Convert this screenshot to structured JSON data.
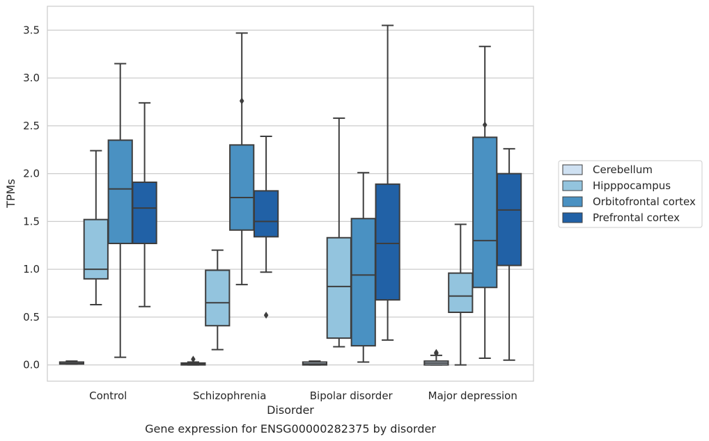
{
  "chart_data": {
    "type": "box",
    "caption": "Gene expression for ENSG00000282375 by disorder",
    "xlabel": "Disorder",
    "ylabel": "TPMs",
    "ylim": [
      -0.17,
      3.75
    ],
    "yticks": [
      0.0,
      0.5,
      1.0,
      1.5,
      2.0,
      2.5,
      3.0,
      3.5
    ],
    "ytick_labels": [
      "0.0",
      "0.5",
      "1.0",
      "1.5",
      "2.0",
      "2.5",
      "3.0",
      "3.5"
    ],
    "grid": "horizontal",
    "legend_position": "right",
    "categories": [
      "Control",
      "Schizophrenia",
      "Bipolar disorder",
      "Major depression"
    ],
    "series": [
      {
        "name": "Cerebellum",
        "color": "#cfe1f2",
        "boxes": [
          {
            "whisker_low": 0.01,
            "q1": 0.01,
            "median": 0.015,
            "q3": 0.03,
            "whisker_high": 0.04,
            "outliers": []
          },
          {
            "whisker_low": 0.0,
            "q1": 0.0,
            "median": 0.01,
            "q3": 0.02,
            "whisker_high": 0.03,
            "outliers": [
              0.06
            ]
          },
          {
            "whisker_low": 0.0,
            "q1": 0.0,
            "median": 0.01,
            "q3": 0.03,
            "whisker_high": 0.04,
            "outliers": []
          },
          {
            "whisker_low": 0.0,
            "q1": 0.0,
            "median": 0.02,
            "q3": 0.04,
            "whisker_high": 0.1,
            "outliers": [
              0.12,
              0.13
            ]
          }
        ]
      },
      {
        "name": "Hipppocampus",
        "color": "#93c4de",
        "boxes": [
          {
            "whisker_low": 0.63,
            "q1": 0.9,
            "median": 1.0,
            "q3": 1.52,
            "whisker_high": 2.24,
            "outliers": []
          },
          {
            "whisker_low": 0.16,
            "q1": 0.41,
            "median": 0.65,
            "q3": 0.99,
            "whisker_high": 1.2,
            "outliers": []
          },
          {
            "whisker_low": 0.19,
            "q1": 0.28,
            "median": 0.82,
            "q3": 1.33,
            "whisker_high": 2.58,
            "outliers": []
          },
          {
            "whisker_low": 0.0,
            "q1": 0.55,
            "median": 0.72,
            "q3": 0.96,
            "whisker_high": 1.47,
            "outliers": []
          }
        ]
      },
      {
        "name": "Orbitofrontal cortex",
        "color": "#4a91c2",
        "boxes": [
          {
            "whisker_low": 0.08,
            "q1": 1.27,
            "median": 1.84,
            "q3": 2.35,
            "whisker_high": 3.15,
            "outliers": []
          },
          {
            "whisker_low": 0.84,
            "q1": 1.41,
            "median": 1.75,
            "q3": 2.3,
            "whisker_high": 3.47,
            "outliers": [
              2.76
            ]
          },
          {
            "whisker_low": 0.03,
            "q1": 0.2,
            "median": 0.94,
            "q3": 1.53,
            "whisker_high": 2.01,
            "outliers": []
          },
          {
            "whisker_low": 0.07,
            "q1": 0.81,
            "median": 1.3,
            "q3": 2.38,
            "whisker_high": 3.33,
            "outliers": [
              2.51
            ]
          }
        ]
      },
      {
        "name": "Prefrontal cortex",
        "color": "#2161a6",
        "boxes": [
          {
            "whisker_low": 0.61,
            "q1": 1.27,
            "median": 1.64,
            "q3": 1.91,
            "whisker_high": 2.74,
            "outliers": []
          },
          {
            "whisker_low": 0.97,
            "q1": 1.34,
            "median": 1.5,
            "q3": 1.82,
            "whisker_high": 2.39,
            "outliers": [
              0.52
            ]
          },
          {
            "whisker_low": 0.26,
            "q1": 0.68,
            "median": 1.27,
            "q3": 1.89,
            "whisker_high": 3.55,
            "outliers": []
          },
          {
            "whisker_low": 0.05,
            "q1": 1.04,
            "median": 1.62,
            "q3": 2.0,
            "whisker_high": 2.26,
            "outliers": []
          }
        ]
      }
    ]
  }
}
